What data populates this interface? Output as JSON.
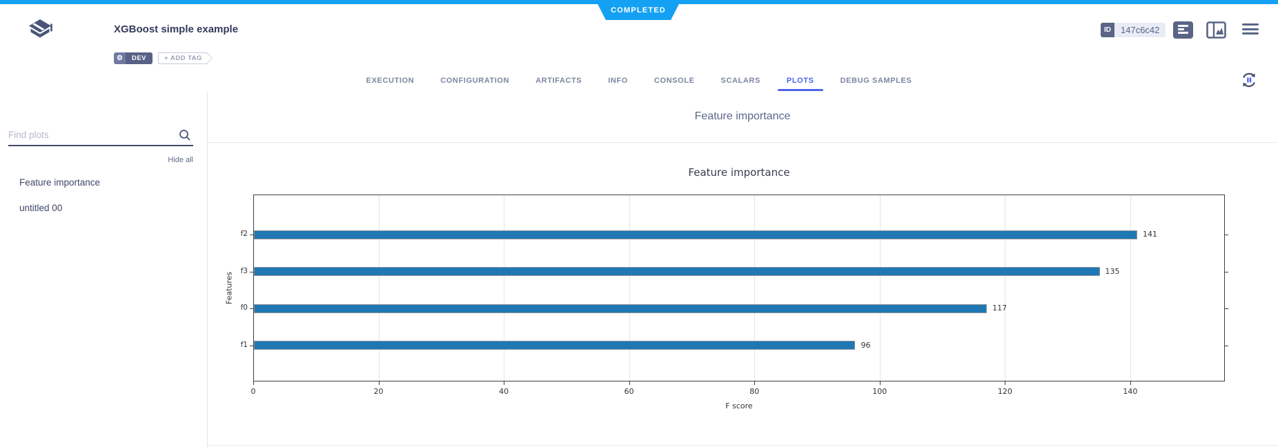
{
  "colors": {
    "accent_blue": "#15a1f3",
    "active_tab_blue": "#4d64e8",
    "slate": "#4a5578",
    "bar_blue": "#1f77b4"
  },
  "status_banner": {
    "label": "COMPLETED"
  },
  "header": {
    "title": "XGBoost simple example",
    "dev_tag": "DEV",
    "add_tag": "+ ADD TAG",
    "id_label": "ID",
    "id_value": "147c6c42"
  },
  "tabs": {
    "items": [
      "EXECUTION",
      "CONFIGURATION",
      "ARTIFACTS",
      "INFO",
      "CONSOLE",
      "SCALARS",
      "PLOTS",
      "DEBUG SAMPLES"
    ],
    "active": "PLOTS"
  },
  "sidebar": {
    "search_placeholder": "Find plots",
    "hide_all_label": "Hide all",
    "items": [
      "Feature importance",
      "untitled 00"
    ]
  },
  "main": {
    "section_title": "Feature importance"
  },
  "chart_data": {
    "type": "bar",
    "orientation": "horizontal",
    "title": "Feature importance",
    "categories": [
      "f2",
      "f3",
      "f0",
      "f1"
    ],
    "values": [
      141,
      135,
      117,
      96
    ],
    "data_labels": [
      "141",
      "135",
      "117",
      "96"
    ],
    "xlabel": "F score",
    "ylabel": "Features",
    "xlim": [
      0,
      155.1
    ],
    "xticks": [
      0,
      20,
      40,
      60,
      80,
      100,
      120,
      140
    ],
    "grid": true,
    "bar_color": "#1f77b4"
  }
}
